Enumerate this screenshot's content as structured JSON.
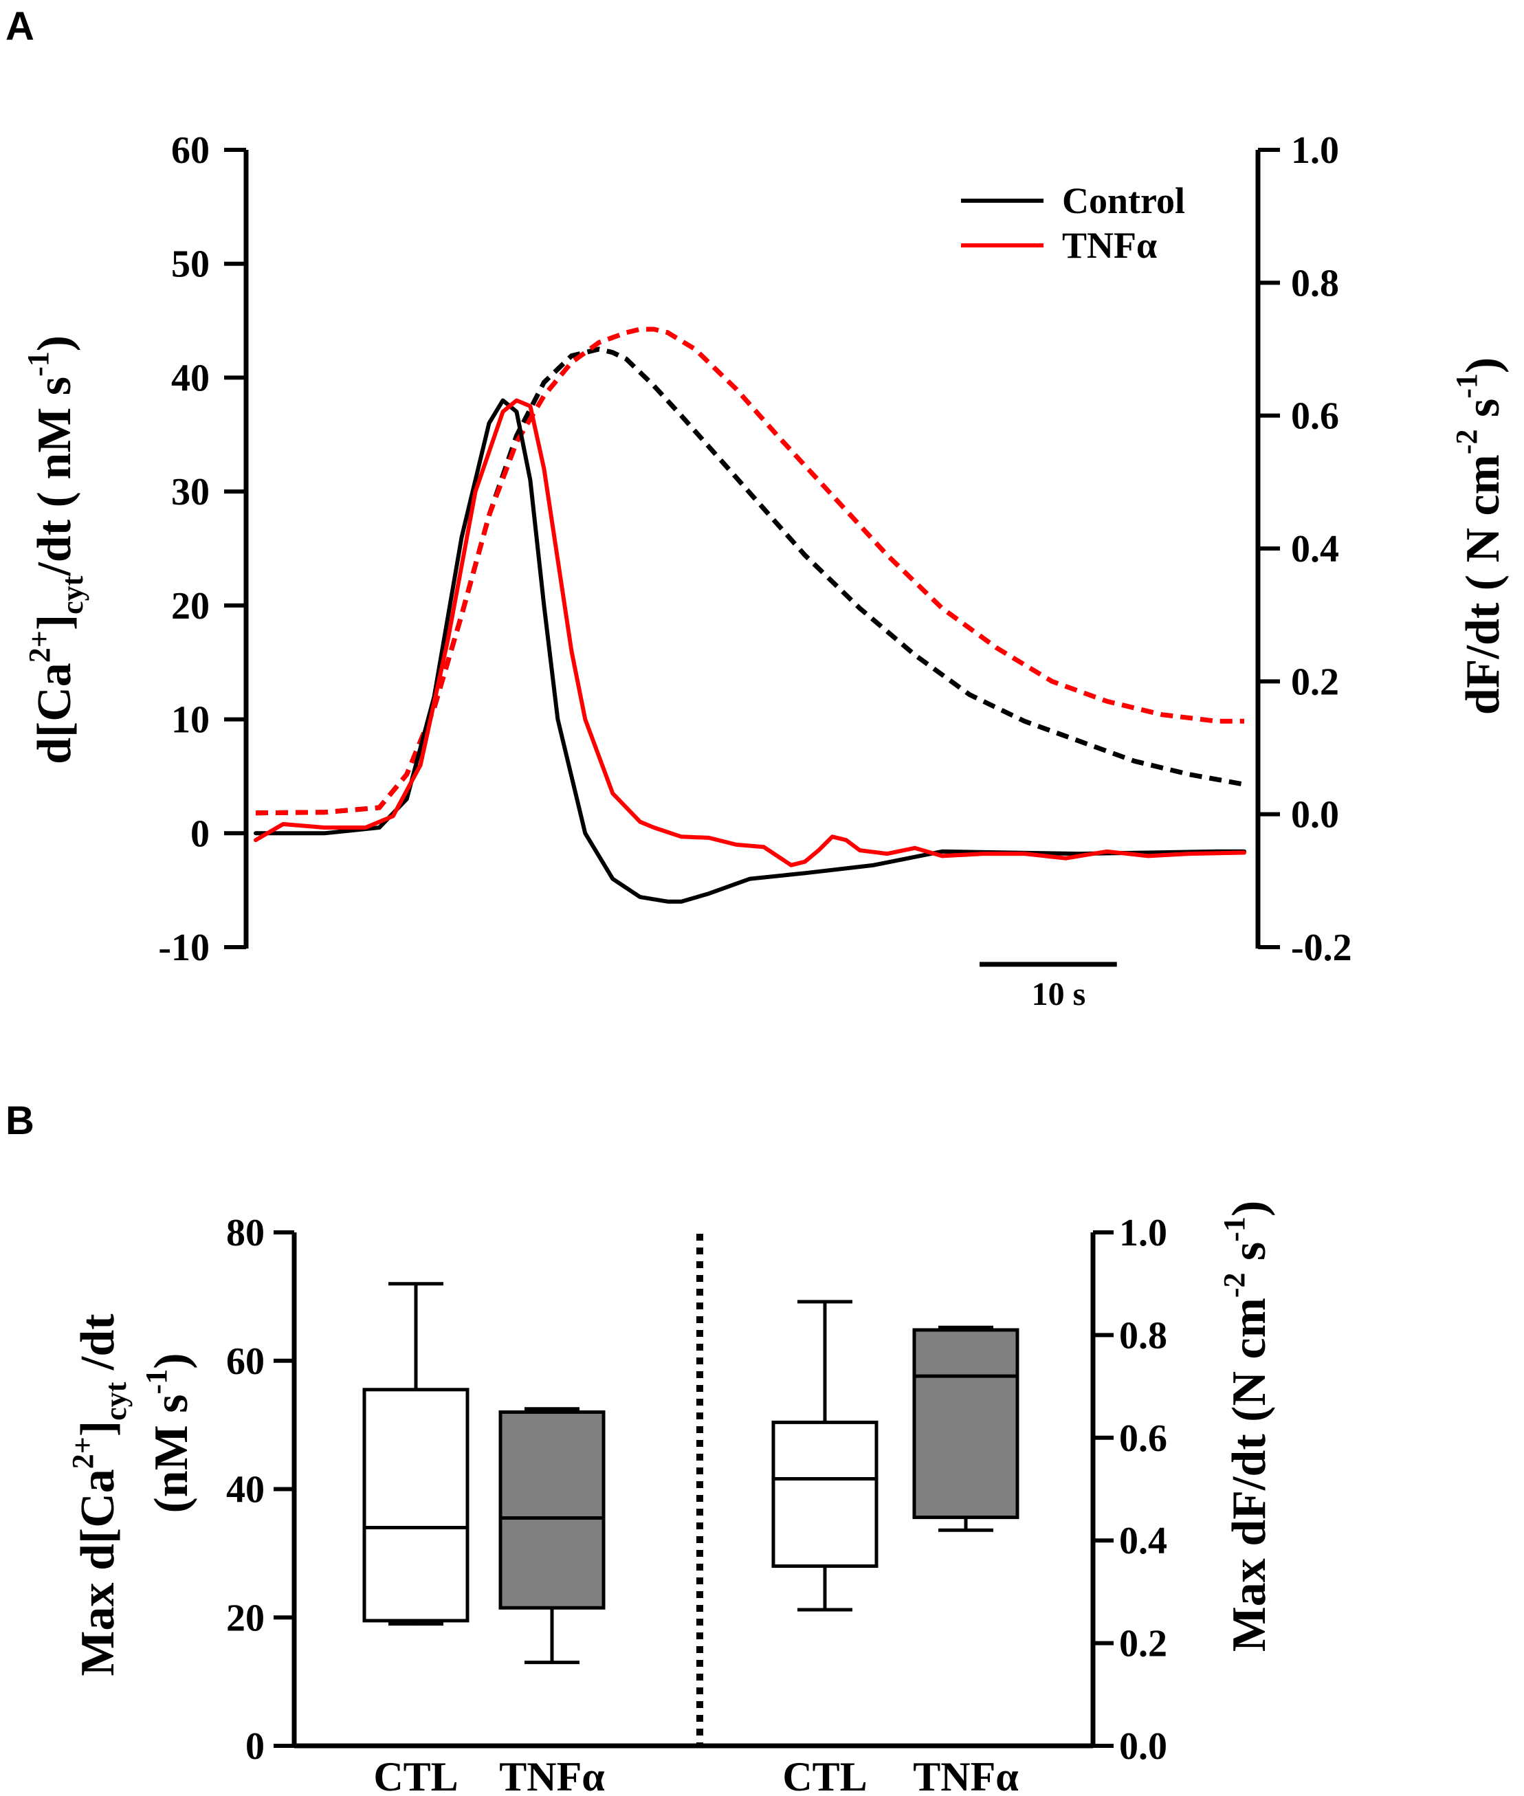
{
  "chart_data": [
    {
      "panel": "A",
      "type": "line",
      "legend": [
        {
          "label": "Control",
          "color": "#000000"
        },
        {
          "label": "TNFα",
          "color": "#ff0000"
        }
      ],
      "legend_position": "top-right",
      "left_axis": {
        "label_parts": [
          "d[Ca",
          "2+",
          "]",
          "cyt",
          "/dt ( nM s",
          "-1",
          ")"
        ],
        "ylim": [
          -10,
          60
        ],
        "ticks": [
          -10,
          0,
          10,
          20,
          30,
          40,
          50,
          60
        ],
        "tick_labels": [
          "-10",
          "0",
          "10",
          "20",
          "30",
          "40",
          "50",
          "60"
        ]
      },
      "right_axis": {
        "label_parts": [
          "dF/dt ( N cm",
          "-2",
          " s",
          "-1",
          ")"
        ],
        "ylim": [
          -0.2,
          1.0
        ],
        "ticks": [
          -0.2,
          0.0,
          0.2,
          0.4,
          0.6,
          0.8,
          1.0
        ],
        "tick_labels": [
          "-0.2",
          "0.0",
          "0.2",
          "0.4",
          "0.6",
          "0.8",
          "1.0"
        ]
      },
      "x_units": "s",
      "xlim": [
        0,
        72
      ],
      "scale_bar": {
        "label": "10 s",
        "length_s": 10
      },
      "series": [
        {
          "name": "Control d[Ca2+]cyt/dt",
          "axis": "left",
          "style": "solid",
          "color": "#000000",
          "x": [
            0,
            5,
            9,
            11,
            13,
            15,
            17,
            18,
            19,
            20,
            21,
            22,
            24,
            26,
            28,
            30,
            31,
            33,
            36,
            40,
            45,
            50,
            55,
            60,
            65,
            70,
            72
          ],
          "y": [
            0,
            0,
            0.5,
            3,
            12,
            26,
            36,
            38,
            37,
            31,
            20,
            10,
            0,
            -4,
            -5.6,
            -6,
            -6,
            -5.3,
            -4,
            -3.5,
            -2.8,
            -1.6,
            -1.7,
            -1.8,
            -1.7,
            -1.6,
            -1.6
          ]
        },
        {
          "name": "TNFα d[Ca2+]cyt/dt",
          "axis": "left",
          "style": "solid",
          "color": "#ff0000",
          "x": [
            0,
            2,
            5,
            8,
            10,
            12,
            14,
            16,
            18,
            19,
            20,
            21,
            22,
            23,
            24,
            26,
            28,
            29,
            31,
            33,
            35,
            37,
            39,
            40,
            41,
            42,
            43,
            44,
            46,
            48,
            50,
            53,
            56,
            59,
            62,
            65,
            68,
            72
          ],
          "y": [
            -0.6,
            0.8,
            0.5,
            0.5,
            1.5,
            6,
            17,
            30,
            37,
            38,
            37.5,
            32,
            24,
            16,
            10,
            3.5,
            1,
            0.5,
            -0.3,
            -0.4,
            -1,
            -1.2,
            -2.8,
            -2.5,
            -1.5,
            -0.3,
            -0.6,
            -1.5,
            -1.8,
            -1.3,
            -2,
            -1.8,
            -1.8,
            -2.2,
            -1.6,
            -2,
            -1.8,
            -1.7
          ]
        },
        {
          "name": "Control dF/dt",
          "axis": "right",
          "style": "dashed",
          "color": "#000000",
          "x": [
            0,
            5,
            9,
            11,
            13,
            15,
            17,
            19,
            21,
            23,
            25,
            26,
            27,
            29,
            31,
            34,
            37,
            40,
            44,
            48,
            52,
            56,
            60,
            64,
            68,
            72
          ],
          "y": [
            0.002,
            0.003,
            0.01,
            0.06,
            0.16,
            0.3,
            0.45,
            0.57,
            0.65,
            0.69,
            0.7,
            0.695,
            0.685,
            0.645,
            0.6,
            0.53,
            0.46,
            0.39,
            0.31,
            0.24,
            0.18,
            0.14,
            0.11,
            0.08,
            0.06,
            0.045
          ]
        },
        {
          "name": "TNFα dF/dt",
          "axis": "right",
          "style": "dashed",
          "color": "#ff0000",
          "x": [
            0,
            5,
            9,
            11,
            13,
            15,
            17,
            19,
            21,
            23,
            25,
            27,
            28,
            29,
            30,
            32,
            35,
            38,
            42,
            46,
            50,
            54,
            58,
            62,
            66,
            70,
            72
          ],
          "y": [
            0.002,
            0.003,
            0.01,
            0.06,
            0.16,
            0.3,
            0.45,
            0.56,
            0.63,
            0.68,
            0.71,
            0.725,
            0.73,
            0.73,
            0.725,
            0.7,
            0.64,
            0.57,
            0.48,
            0.39,
            0.31,
            0.25,
            0.2,
            0.17,
            0.15,
            0.14,
            0.14
          ]
        }
      ]
    },
    {
      "panel": "B",
      "type": "box",
      "categories": [
        "CTL",
        "TNFα",
        "CTL",
        "TNFα"
      ],
      "left_axis": {
        "label_parts": [
          "Max d[Ca",
          "2+",
          "]",
          "cyt",
          " /dt"
        ],
        "label_line2_parts": [
          "(nM s",
          "-1",
          ")"
        ],
        "ylim": [
          0,
          80
        ],
        "ticks": [
          0,
          20,
          40,
          60,
          80
        ],
        "tick_labels": [
          "0",
          "20",
          "40",
          "60",
          "80"
        ]
      },
      "right_axis": {
        "label_parts": [
          "Max  dF/dt (N cm",
          "-2",
          " s",
          "-1",
          ")"
        ],
        "ylim": [
          0.0,
          1.0
        ],
        "ticks": [
          0.0,
          0.2,
          0.4,
          0.6,
          0.8,
          1.0
        ],
        "tick_labels": [
          "0.0",
          "0.2",
          "0.4",
          "0.6",
          "0.8",
          "1.0"
        ]
      },
      "boxes": [
        {
          "category": "CTL",
          "measure": "Max d[Ca2+]cyt/dt",
          "axis": "left",
          "fill": "#ffffff",
          "min": 19,
          "q1": 19.5,
          "median": 34,
          "q3": 55.5,
          "max": 72
        },
        {
          "category": "TNFα",
          "measure": "Max d[Ca2+]cyt/dt",
          "axis": "left",
          "fill": "#808080",
          "min": 13,
          "q1": 21.5,
          "median": 35.5,
          "q3": 52,
          "max": 52.5
        },
        {
          "category": "CTL",
          "measure": "Max dF/dt",
          "axis": "right",
          "fill": "#ffffff",
          "min": 0.265,
          "q1": 0.35,
          "median": 0.52,
          "q3": 0.63,
          "max": 0.865
        },
        {
          "category": "TNFα",
          "measure": "Max dF/dt",
          "axis": "right",
          "fill": "#808080",
          "min": 0.42,
          "q1": 0.445,
          "median": 0.72,
          "q3": 0.81,
          "max": 0.815
        }
      ]
    }
  ],
  "panel_labels": {
    "a": "A",
    "b": "B"
  }
}
